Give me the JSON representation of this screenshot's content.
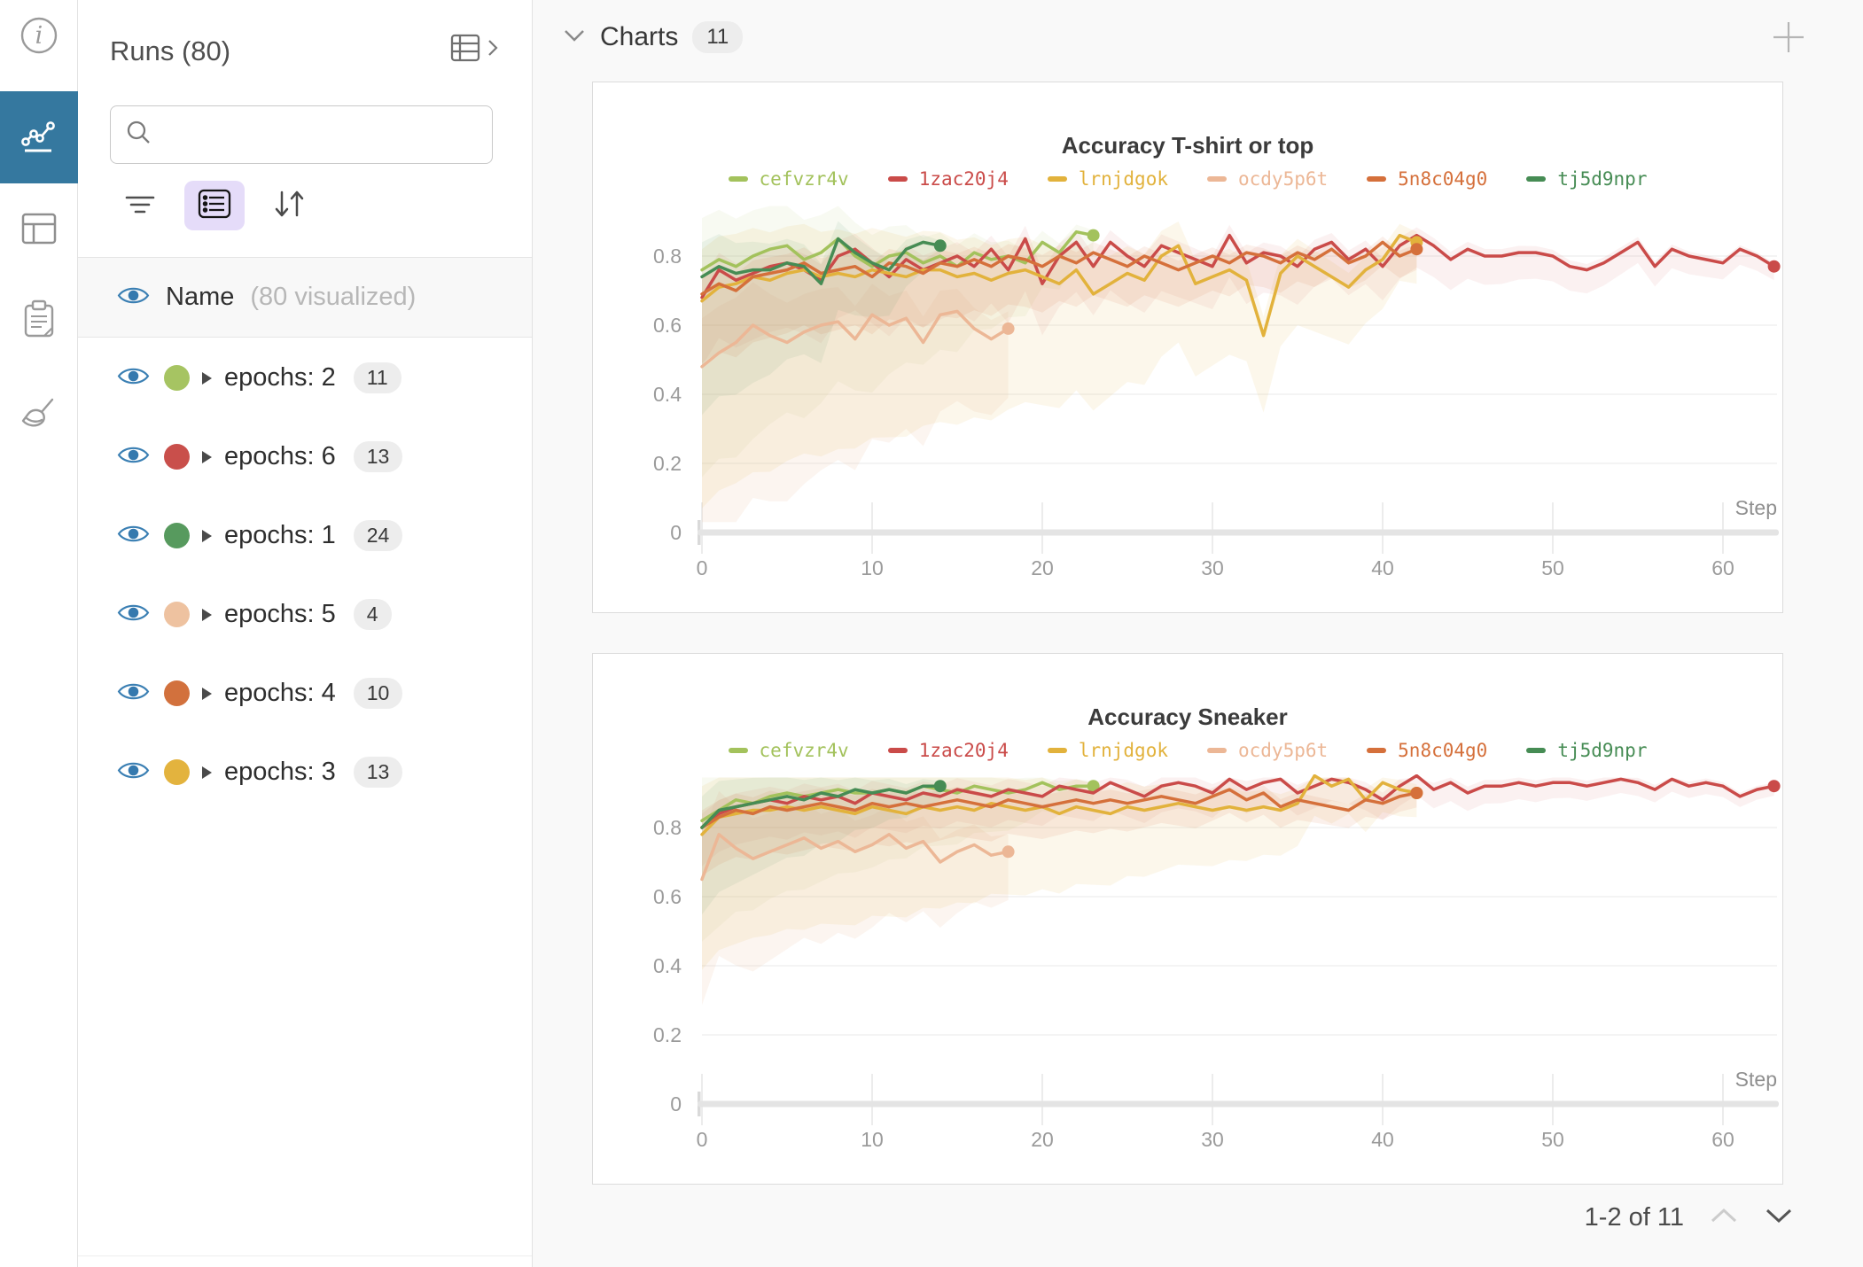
{
  "rail": {
    "active_color": "#35789f",
    "items": [
      {
        "icon": "info-icon",
        "active": false
      },
      {
        "icon": "line-chart-icon",
        "active": true
      },
      {
        "icon": "table-icon",
        "active": false
      },
      {
        "icon": "clipboard-icon",
        "active": false
      },
      {
        "icon": "broom-icon",
        "active": false
      }
    ]
  },
  "runs_panel": {
    "title": "Runs (80)",
    "search_placeholder": "",
    "search_value": "",
    "name_header": {
      "label": "Name",
      "sublabel": "(80 visualized)"
    },
    "rows": [
      {
        "label": "epochs: 2",
        "count": "11",
        "color": "#a6c462"
      },
      {
        "label": "epochs: 6",
        "count": "13",
        "color": "#c94f4b"
      },
      {
        "label": "epochs: 1",
        "count": "24",
        "color": "#579a5e"
      },
      {
        "label": "epochs: 5",
        "count": "4",
        "color": "#eec2a0"
      },
      {
        "label": "epochs: 4",
        "count": "10",
        "color": "#d2713d"
      },
      {
        "label": "epochs: 3",
        "count": "13",
        "color": "#e3b33e"
      }
    ]
  },
  "charts_header": {
    "title": "Charts",
    "count": "11"
  },
  "pagination": {
    "label": "1-2 of 11"
  },
  "chart_data": [
    {
      "type": "line",
      "title": "Accuracy T-shirt or top",
      "xlabel": "Step",
      "ylabel": "",
      "x_ticks": [
        0,
        10,
        20,
        30,
        40,
        50,
        60
      ],
      "y_ticks": [
        0,
        0.2,
        0.4,
        0.6,
        0.8
      ],
      "xlim": [
        0,
        63
      ],
      "ylim": [
        0,
        0.95
      ],
      "grid": true,
      "legend_position": "top",
      "band_up_mult": 0.5,
      "band_low_mult": 2.0,
      "series": [
        {
          "name": "cefvzr4v",
          "color": "#a3c25c",
          "band0": 0.3,
          "band1": 0.03,
          "band_alpha": 0.08,
          "values": [
            0.76,
            0.79,
            0.77,
            0.8,
            0.82,
            0.83,
            0.79,
            0.81,
            0.85,
            0.8,
            0.77,
            0.8,
            0.81,
            0.78,
            0.8,
            0.77,
            0.81,
            0.79,
            0.8,
            0.78,
            0.84,
            0.81,
            0.87,
            0.86
          ]
        },
        {
          "name": "1zac20j4",
          "color": "#ca4b49",
          "band0": 0.1,
          "band1": 0.02,
          "band_alpha": 0.08,
          "values": [
            0.68,
            0.76,
            0.73,
            0.75,
            0.77,
            0.78,
            0.76,
            0.73,
            0.8,
            0.82,
            0.78,
            0.74,
            0.79,
            0.76,
            0.78,
            0.8,
            0.77,
            0.82,
            0.76,
            0.85,
            0.72,
            0.8,
            0.84,
            0.77,
            0.84,
            0.8,
            0.77,
            0.83,
            0.81,
            0.79,
            0.77,
            0.86,
            0.78,
            0.81,
            0.8,
            0.77,
            0.82,
            0.84,
            0.79,
            0.82,
            0.77,
            0.83,
            0.86,
            0.83,
            0.79,
            0.82,
            0.8,
            0.8,
            0.81,
            0.81,
            0.8,
            0.77,
            0.76,
            0.78,
            0.81,
            0.84,
            0.77,
            0.82,
            0.8,
            0.79,
            0.78,
            0.82,
            0.8,
            0.77
          ]
        },
        {
          "name": "lrnjdgok",
          "color": "#e2b23c",
          "band0": 0.3,
          "band1": 0.06,
          "band_alpha": 0.1,
          "values": [
            0.67,
            0.71,
            0.72,
            0.74,
            0.73,
            0.75,
            0.76,
            0.74,
            0.75,
            0.74,
            0.76,
            0.75,
            0.74,
            0.76,
            0.76,
            0.74,
            0.75,
            0.73,
            0.75,
            0.76,
            0.74,
            0.72,
            0.76,
            0.69,
            0.72,
            0.75,
            0.73,
            0.8,
            0.83,
            0.72,
            0.74,
            0.76,
            0.73,
            0.57,
            0.75,
            0.8,
            0.77,
            0.74,
            0.71,
            0.76,
            0.79,
            0.86,
            0.84
          ]
        },
        {
          "name": "ocdy5p6t",
          "color": "#ecb796",
          "band0": 0.28,
          "band1": 0.1,
          "band_alpha": 0.14,
          "values": [
            0.48,
            0.52,
            0.55,
            0.6,
            0.57,
            0.55,
            0.58,
            0.6,
            0.61,
            0.56,
            0.63,
            0.6,
            0.62,
            0.55,
            0.63,
            0.64,
            0.59,
            0.56,
            0.59
          ]
        },
        {
          "name": "5n8c04g0",
          "color": "#d5703b",
          "band0": 0.1,
          "band1": 0.03,
          "band_alpha": 0.1,
          "values": [
            0.69,
            0.72,
            0.7,
            0.74,
            0.75,
            0.76,
            0.78,
            0.75,
            0.76,
            0.77,
            0.74,
            0.78,
            0.77,
            0.75,
            0.78,
            0.77,
            0.79,
            0.77,
            0.8,
            0.79,
            0.77,
            0.8,
            0.78,
            0.81,
            0.79,
            0.77,
            0.8,
            0.78,
            0.76,
            0.78,
            0.8,
            0.78,
            0.81,
            0.8,
            0.78,
            0.81,
            0.79,
            0.82,
            0.78,
            0.8,
            0.84,
            0.8,
            0.82
          ]
        },
        {
          "name": "tj5d9npr",
          "color": "#468c54",
          "band0": 0.2,
          "band1": 0.03,
          "band_alpha": 0.08,
          "values": [
            0.74,
            0.77,
            0.75,
            0.76,
            0.76,
            0.78,
            0.77,
            0.72,
            0.85,
            0.81,
            0.78,
            0.76,
            0.82,
            0.84,
            0.83
          ]
        }
      ]
    },
    {
      "type": "line",
      "title": "Accuracy Sneaker",
      "xlabel": "Step",
      "ylabel": "",
      "x_ticks": [
        0,
        10,
        20,
        30,
        40,
        50,
        60
      ],
      "y_ticks": [
        0,
        0.2,
        0.4,
        0.6,
        0.8
      ],
      "xlim": [
        0,
        63
      ],
      "ylim": [
        0,
        0.95
      ],
      "grid": true,
      "legend_position": "top",
      "band_up_mult": 0.5,
      "band_low_mult": 1.4,
      "series": [
        {
          "name": "cefvzr4v",
          "color": "#a3c25c",
          "band0": 0.25,
          "band1": 0.03,
          "band_alpha": 0.08,
          "values": [
            0.82,
            0.85,
            0.88,
            0.87,
            0.89,
            0.9,
            0.89,
            0.9,
            0.91,
            0.9,
            0.9,
            0.91,
            0.9,
            0.92,
            0.91,
            0.9,
            0.92,
            0.91,
            0.9,
            0.91,
            0.93,
            0.91,
            0.92,
            0.92
          ]
        },
        {
          "name": "1zac20j4",
          "color": "#ca4b49",
          "band0": 0.08,
          "band1": 0.02,
          "band_alpha": 0.08,
          "values": [
            0.8,
            0.84,
            0.86,
            0.87,
            0.88,
            0.87,
            0.89,
            0.88,
            0.89,
            0.87,
            0.9,
            0.89,
            0.88,
            0.9,
            0.89,
            0.91,
            0.9,
            0.89,
            0.91,
            0.9,
            0.89,
            0.92,
            0.91,
            0.9,
            0.93,
            0.91,
            0.89,
            0.92,
            0.93,
            0.92,
            0.9,
            0.94,
            0.91,
            0.93,
            0.94,
            0.9,
            0.92,
            0.94,
            0.93,
            0.91,
            0.88,
            0.92,
            0.95,
            0.91,
            0.93,
            0.9,
            0.92,
            0.92,
            0.93,
            0.92,
            0.93,
            0.93,
            0.92,
            0.93,
            0.94,
            0.93,
            0.91,
            0.94,
            0.92,
            0.93,
            0.92,
            0.89,
            0.91,
            0.92
          ]
        },
        {
          "name": "lrnjdgok",
          "color": "#e2b23c",
          "band0": 0.28,
          "band1": 0.05,
          "band_alpha": 0.1,
          "values": [
            0.78,
            0.83,
            0.84,
            0.85,
            0.85,
            0.86,
            0.85,
            0.86,
            0.85,
            0.84,
            0.86,
            0.85,
            0.84,
            0.86,
            0.85,
            0.86,
            0.85,
            0.87,
            0.86,
            0.85,
            0.86,
            0.84,
            0.86,
            0.85,
            0.84,
            0.86,
            0.85,
            0.86,
            0.87,
            0.86,
            0.85,
            0.86,
            0.85,
            0.86,
            0.85,
            0.87,
            0.95,
            0.92,
            0.94,
            0.88,
            0.93,
            0.91,
            0.9
          ]
        },
        {
          "name": "ocdy5p6t",
          "color": "#ecb796",
          "band0": 0.26,
          "band1": 0.1,
          "band_alpha": 0.14,
          "values": [
            0.65,
            0.78,
            0.74,
            0.71,
            0.73,
            0.75,
            0.77,
            0.74,
            0.76,
            0.73,
            0.75,
            0.78,
            0.74,
            0.76,
            0.7,
            0.73,
            0.75,
            0.72,
            0.73
          ]
        },
        {
          "name": "5n8c04g0",
          "color": "#d5703b",
          "band0": 0.1,
          "band1": 0.03,
          "band_alpha": 0.1,
          "values": [
            0.8,
            0.83,
            0.85,
            0.84,
            0.86,
            0.85,
            0.86,
            0.87,
            0.86,
            0.85,
            0.87,
            0.86,
            0.87,
            0.86,
            0.87,
            0.88,
            0.87,
            0.86,
            0.88,
            0.87,
            0.86,
            0.87,
            0.88,
            0.87,
            0.88,
            0.87,
            0.88,
            0.89,
            0.88,
            0.87,
            0.89,
            0.91,
            0.88,
            0.9,
            0.86,
            0.88,
            0.87,
            0.86,
            0.85,
            0.88,
            0.87,
            0.89,
            0.9
          ]
        },
        {
          "name": "tj5d9npr",
          "color": "#468c54",
          "band0": 0.18,
          "band1": 0.03,
          "band_alpha": 0.08,
          "values": [
            0.8,
            0.85,
            0.86,
            0.87,
            0.88,
            0.89,
            0.88,
            0.9,
            0.89,
            0.91,
            0.9,
            0.91,
            0.9,
            0.92,
            0.92
          ]
        }
      ]
    }
  ]
}
